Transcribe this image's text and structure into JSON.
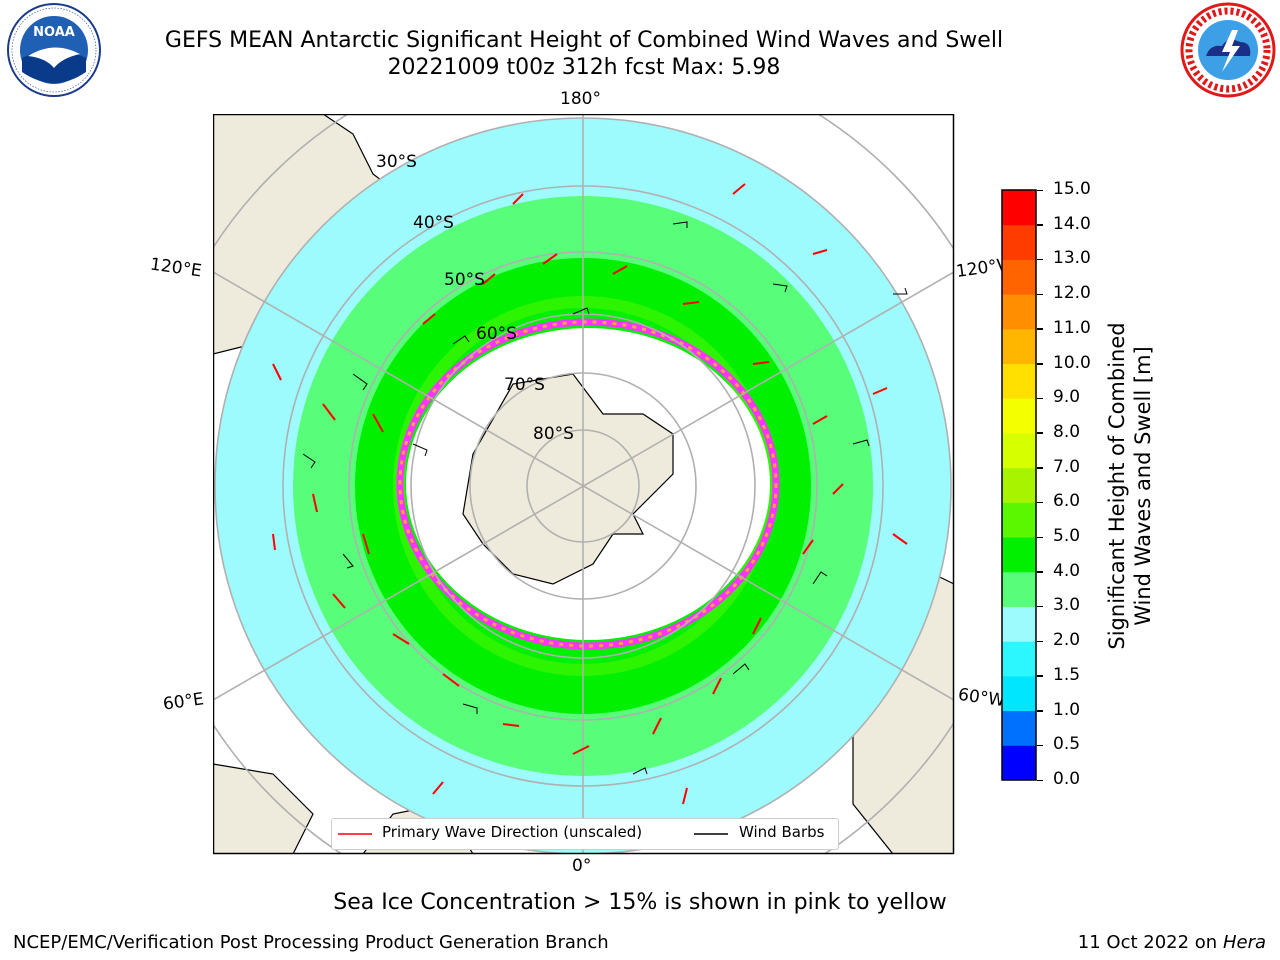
{
  "title": {
    "line1": "GEFS MEAN Antarctic Significant Height of Combined Wind Waves and Swell",
    "line2": "20221009 t00z 312h fcst   Max: 5.98"
  },
  "logos": {
    "left": {
      "name": "NOAA",
      "ring_text": "NATIONAL OCEANIC AND ATMOSPHERIC ADMINISTRATION · U.S. DEPARTMENT OF COMMERCE"
    },
    "right": {
      "name": "NATIONAL WEATHER SERVICE"
    }
  },
  "map": {
    "projection": "south-polar-stereographic",
    "longitude_labels": {
      "top": "180°",
      "bottom": "0°",
      "upper_left": "120°E",
      "upper_right": "120°W",
      "lower_left": "60°E",
      "lower_right": "60°W"
    },
    "latitude_labels": [
      "30°S",
      "40°S",
      "50°S",
      "60°S",
      "70°S",
      "80°S"
    ]
  },
  "legend": {
    "wave_direction": "Primary Wave Direction (unscaled)",
    "wind_barbs": "Wind Barbs"
  },
  "colorbar": {
    "label_line1": "Significant Height of Combined",
    "label_line2": "Wind Waves and Swell [m]",
    "ticks": [
      "0.0",
      "0.5",
      "1.0",
      "1.5",
      "2.0",
      "3.0",
      "4.0",
      "5.0",
      "6.0",
      "7.0",
      "8.0",
      "9.0",
      "10.0",
      "11.0",
      "12.0",
      "13.0",
      "14.0",
      "15.0"
    ],
    "colors": [
      "#0000ff",
      "#0070ff",
      "#00e6ff",
      "#2cf7ff",
      "#9dfbfd",
      "#58fd7a",
      "#00f000",
      "#5af700",
      "#a8f400",
      "#d6ff00",
      "#f4ff00",
      "#ffe000",
      "#ffb600",
      "#ff8e00",
      "#ff6400",
      "#ff3c00",
      "#ff0000"
    ]
  },
  "footer": {
    "note": "Sea Ice Concentration > 15% is shown in pink to yellow",
    "left": "NCEP/EMC/Verification Post Processing Product Generation Branch",
    "right_date": "11 Oct 2022 on ",
    "right_machine": "Hera"
  }
}
